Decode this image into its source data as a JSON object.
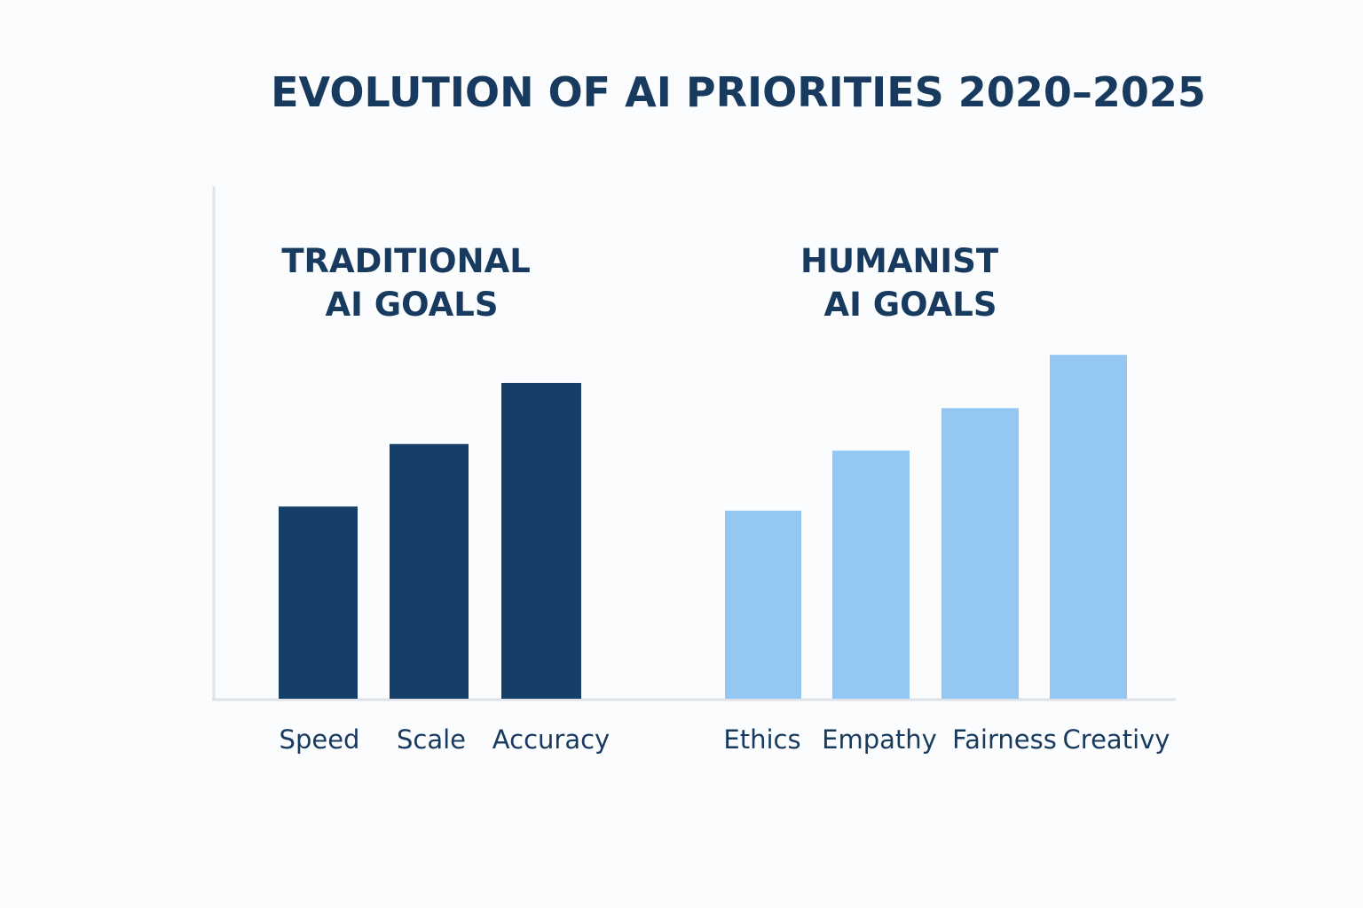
{
  "chart_data": {
    "type": "bar",
    "title": "EVOLUTION OF AI PRIORITIES 2020–2025",
    "xlabel": "",
    "ylabel": "",
    "ylim": [
      0,
      100
    ],
    "grid": false,
    "legend": "none",
    "groups": [
      {
        "label_lines": [
          "TRADITIONAL",
          "AI GOALS"
        ],
        "color": "#153f69",
        "categories": [
          "Speed",
          "Scale",
          "Accuracy"
        ],
        "values": [
          37.5,
          49.7,
          61.6
        ]
      },
      {
        "label_lines": [
          "HUMANIST",
          "AI GOALS"
        ],
        "color": "#94c8f2",
        "categories": [
          "Ethics",
          "Empathy",
          "Fairness",
          "Creativy"
        ],
        "values": [
          36.7,
          48.4,
          56.7,
          67.1
        ]
      }
    ],
    "colors": {
      "title": "#173a5e",
      "axis": "#dde1e8"
    }
  }
}
